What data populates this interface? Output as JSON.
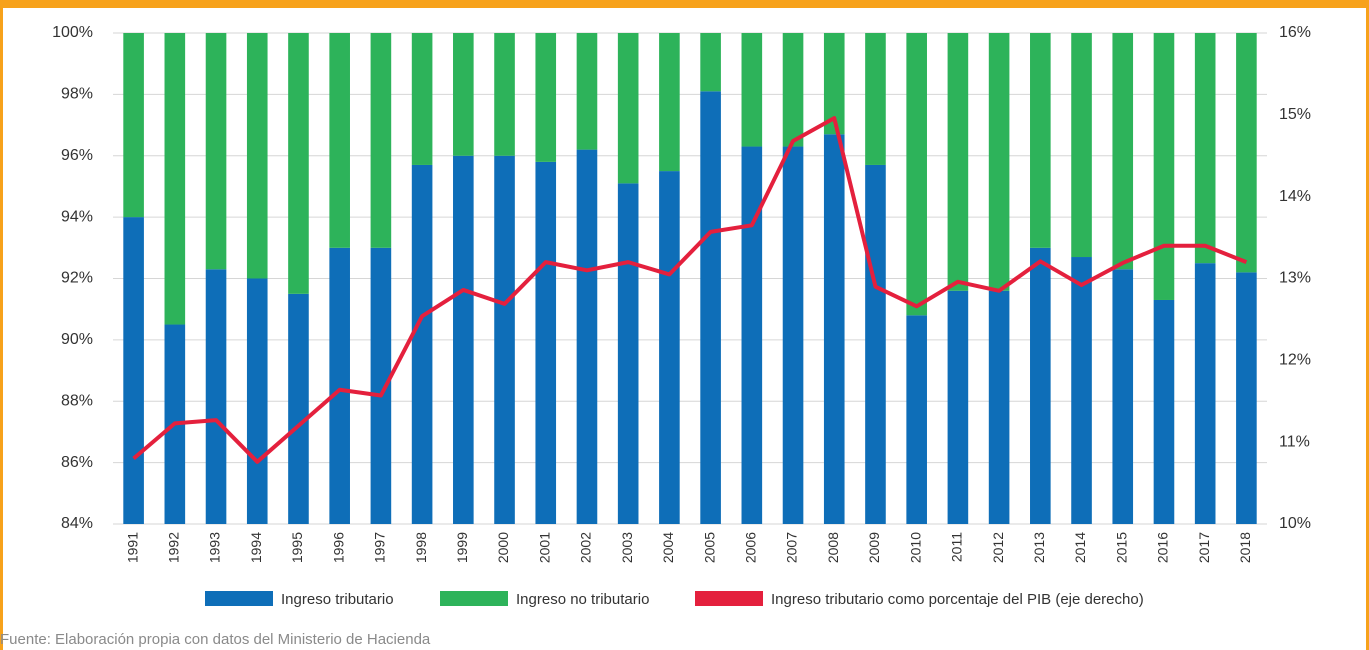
{
  "chart_data": {
    "type": "bar",
    "stacked": true,
    "categories": [
      "1991",
      "1992",
      "1993",
      "1994",
      "1995",
      "1996",
      "1997",
      "1998",
      "1999",
      "2000",
      "2001",
      "2002",
      "2003",
      "2004",
      "2005",
      "2006",
      "2007",
      "2008",
      "2009",
      "2010",
      "2011",
      "2012",
      "2013",
      "2014",
      "2015",
      "2016",
      "2017",
      "2018"
    ],
    "series": [
      {
        "name": "Ingreso tributario",
        "color": "#0e6eb8",
        "type": "bar",
        "values": [
          94.0,
          90.5,
          92.3,
          92.0,
          91.5,
          93.0,
          93.0,
          95.7,
          96.0,
          96.0,
          95.8,
          96.2,
          95.1,
          95.5,
          98.1,
          96.3,
          96.3,
          96.7,
          95.7,
          90.8,
          91.6,
          91.6,
          93.0,
          92.7,
          92.3,
          91.3,
          92.5,
          92.2
        ]
      },
      {
        "name": "Ingreso no tributario",
        "color": "#2db35a",
        "type": "bar",
        "values": [
          6.0,
          9.5,
          7.7,
          8.0,
          8.5,
          7.0,
          7.0,
          4.3,
          4.0,
          4.0,
          4.2,
          3.8,
          4.9,
          4.5,
          1.9,
          3.7,
          3.7,
          3.3,
          4.3,
          9.2,
          8.4,
          8.4,
          7.0,
          7.3,
          7.7,
          8.7,
          7.5,
          7.8
        ]
      },
      {
        "name": "Ingreso tributario como porcentaje del PIB (eje derecho)",
        "color": "#e4203d",
        "type": "line",
        "axis": "y2",
        "values": [
          10.8,
          11.23,
          11.27,
          10.76,
          11.2,
          11.64,
          11.57,
          12.54,
          12.86,
          12.69,
          13.2,
          13.1,
          13.2,
          13.05,
          13.57,
          13.65,
          14.68,
          14.96,
          12.9,
          12.66,
          12.96,
          12.85,
          13.21,
          12.92,
          13.19,
          13.4,
          13.4,
          13.2
        ]
      }
    ],
    "ylim": [
      84,
      100
    ],
    "yticks": [
      {
        "value": 84,
        "label": "84%"
      },
      {
        "value": 86,
        "label": "86%"
      },
      {
        "value": 88,
        "label": "88%"
      },
      {
        "value": 90,
        "label": "90%"
      },
      {
        "value": 92,
        "label": "92%"
      },
      {
        "value": 94,
        "label": "94%"
      },
      {
        "value": 96,
        "label": "96%"
      },
      {
        "value": 98,
        "label": "98%"
      },
      {
        "value": 100,
        "label": "100%"
      }
    ],
    "y2lim": [
      10,
      16
    ],
    "y2ticks": [
      {
        "value": 10,
        "label": "10%"
      },
      {
        "value": 11,
        "label": "11%"
      },
      {
        "value": 12,
        "label": "12%"
      },
      {
        "value": 13,
        "label": "13%"
      },
      {
        "value": 14,
        "label": "14%"
      },
      {
        "value": 15,
        "label": "15%"
      },
      {
        "value": 16,
        "label": "16%"
      }
    ],
    "grid": true,
    "legend": "bottom",
    "source": "Fuente: Elaboración propia con datos del Ministerio de Hacienda"
  }
}
